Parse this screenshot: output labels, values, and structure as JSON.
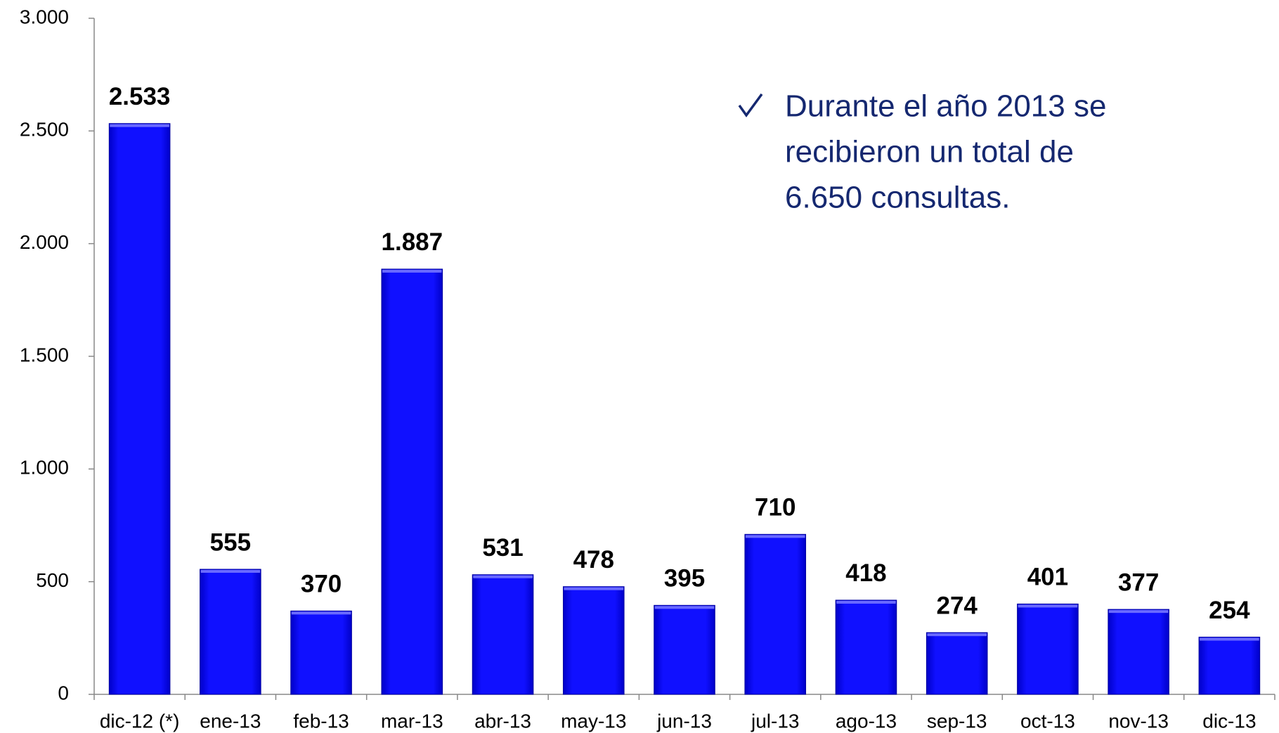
{
  "chart_data": {
    "type": "bar",
    "categories": [
      "dic-12 (*)",
      "ene-13",
      "feb-13",
      "mar-13",
      "abr-13",
      "may-13",
      "jun-13",
      "jul-13",
      "ago-13",
      "sep-13",
      "oct-13",
      "nov-13",
      "dic-13"
    ],
    "values": [
      2533,
      555,
      370,
      1887,
      531,
      478,
      395,
      710,
      418,
      274,
      401,
      377,
      254
    ],
    "value_labels": [
      "2.533",
      "555",
      "370",
      "1.887",
      "531",
      "478",
      "395",
      "710",
      "418",
      "274",
      "401",
      "377",
      "254"
    ],
    "color": "#0a0af2",
    "ylim": [
      0,
      3000
    ],
    "yticks": [
      0,
      500,
      {
        "value": 1000,
        "label": "1.000"
      },
      {
        "value": 1500,
        "label": "1.500"
      },
      {
        "value": 2000,
        "label": "2.000"
      },
      {
        "value": 2500,
        "label": "2.500"
      },
      {
        "value": 3000,
        "label": "3.000"
      }
    ],
    "grid": false,
    "annotation": [
      "Durante el año 2013 se",
      "recibieron un total de",
      "6.650 consultas."
    ]
  }
}
